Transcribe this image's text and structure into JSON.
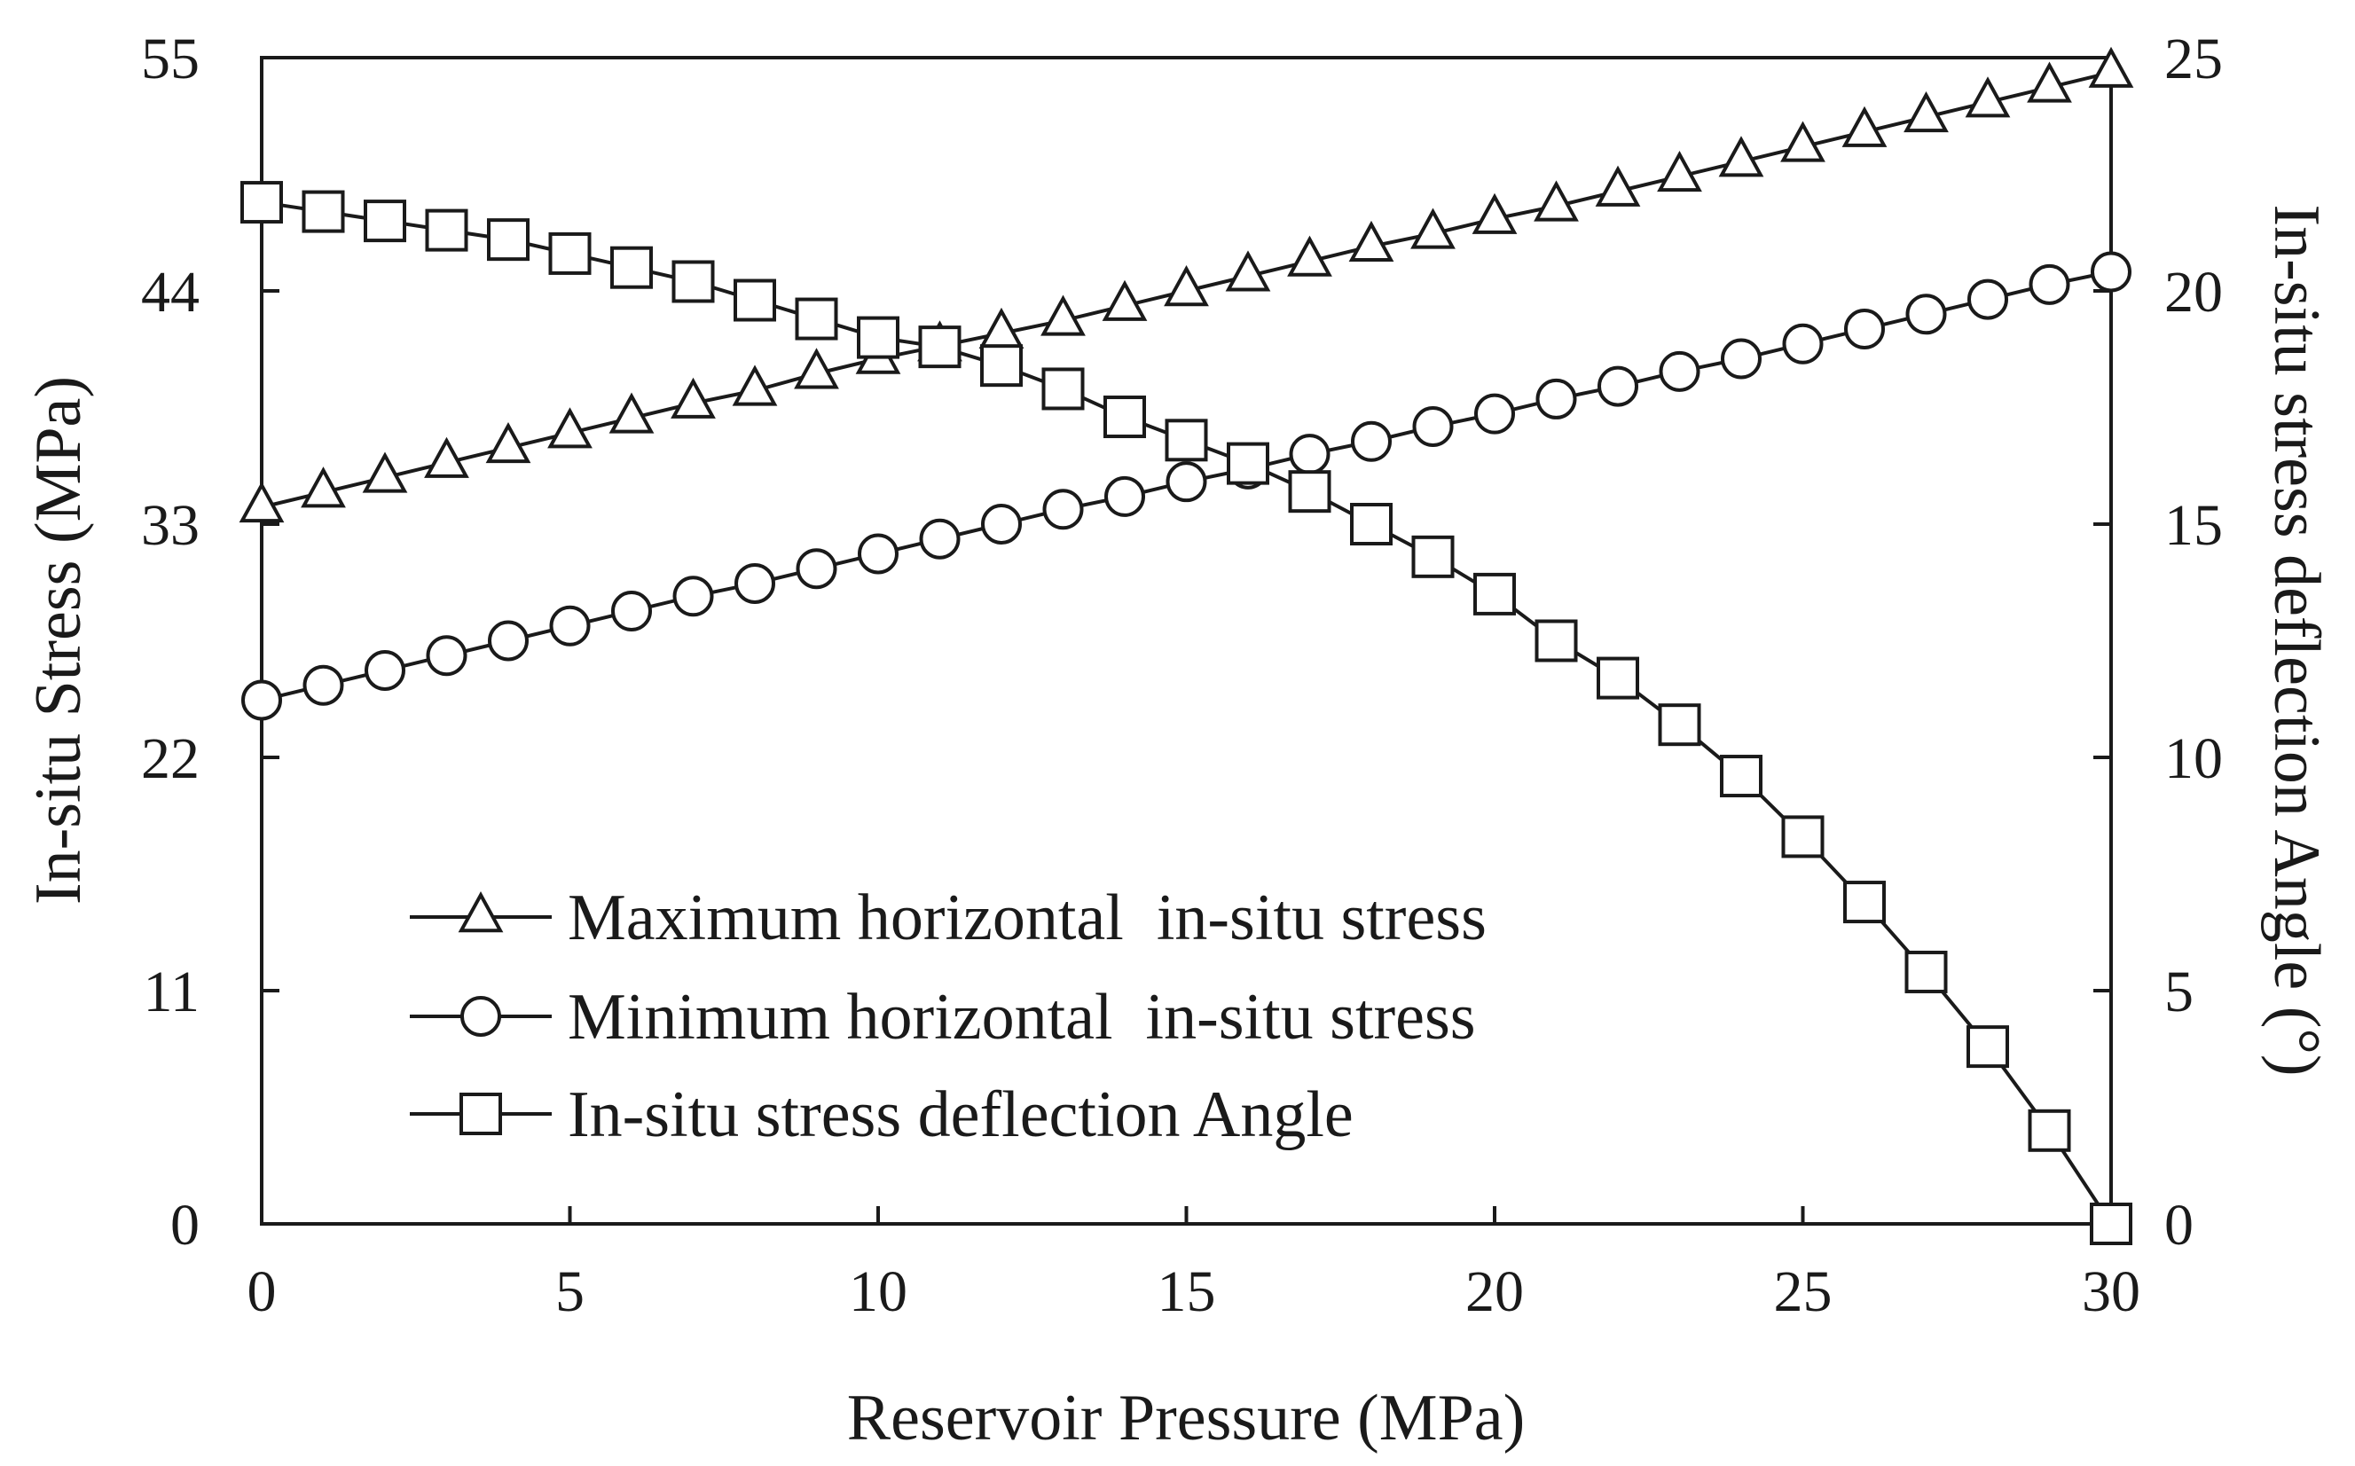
{
  "chart_data": {
    "type": "line",
    "title": "",
    "xlabel": "Reservoir Pressure (MPa)",
    "ylabel": "In-situ Stress (MPa)",
    "y2label": "In-situ stress deflection Angle (°)",
    "xlim": [
      0,
      30
    ],
    "ylim": [
      0,
      55
    ],
    "y2lim": [
      0,
      25
    ],
    "xticks": [
      0,
      5,
      10,
      15,
      20,
      25,
      30
    ],
    "yticks": [
      0,
      11,
      22,
      33,
      44,
      55
    ],
    "y2ticks": [
      0,
      5,
      10,
      15,
      20,
      25
    ],
    "grid": false,
    "legend_position": "bottom-left",
    "x": [
      0,
      1,
      2,
      3,
      4,
      5,
      6,
      7,
      8,
      9,
      10,
      11,
      12,
      13,
      14,
      15,
      16,
      17,
      18,
      19,
      20,
      21,
      22,
      23,
      24,
      25,
      26,
      27,
      28,
      29,
      30
    ],
    "series": [
      {
        "name": "Maximum horizontal  in-situ stress",
        "axis": "left",
        "marker": "triangle",
        "values": [
          33.8,
          34.5,
          35.2,
          35.9,
          36.6,
          37.3,
          38.0,
          38.7,
          39.3,
          40.1,
          40.8,
          41.4,
          42.0,
          42.6,
          43.3,
          44.0,
          44.7,
          45.4,
          46.1,
          46.7,
          47.4,
          48.0,
          48.7,
          49.4,
          50.1,
          50.8,
          51.5,
          52.2,
          52.9,
          53.6,
          54.3
        ]
      },
      {
        "name": "Minimum horizontal  in-situ stress",
        "axis": "left",
        "marker": "circle",
        "values": [
          24.7,
          25.4,
          26.1,
          26.8,
          27.5,
          28.2,
          28.9,
          29.6,
          30.2,
          30.9,
          31.6,
          32.3,
          33.0,
          33.7,
          34.3,
          35.0,
          35.6,
          36.3,
          36.9,
          37.6,
          38.2,
          38.9,
          39.5,
          40.2,
          40.8,
          41.5,
          42.2,
          42.9,
          43.6,
          44.3,
          44.9
        ]
      },
      {
        "name": "In-situ stress deflection Angle",
        "axis": "right",
        "marker": "square",
        "values": [
          21.9,
          21.7,
          21.5,
          21.3,
          21.1,
          20.8,
          20.5,
          20.2,
          19.8,
          19.4,
          19.0,
          18.8,
          18.4,
          17.9,
          17.3,
          16.8,
          16.3,
          15.7,
          15.0,
          14.3,
          13.5,
          12.5,
          11.7,
          10.7,
          9.6,
          8.3,
          6.9,
          5.4,
          3.8,
          2.0,
          0.0
        ]
      }
    ]
  }
}
